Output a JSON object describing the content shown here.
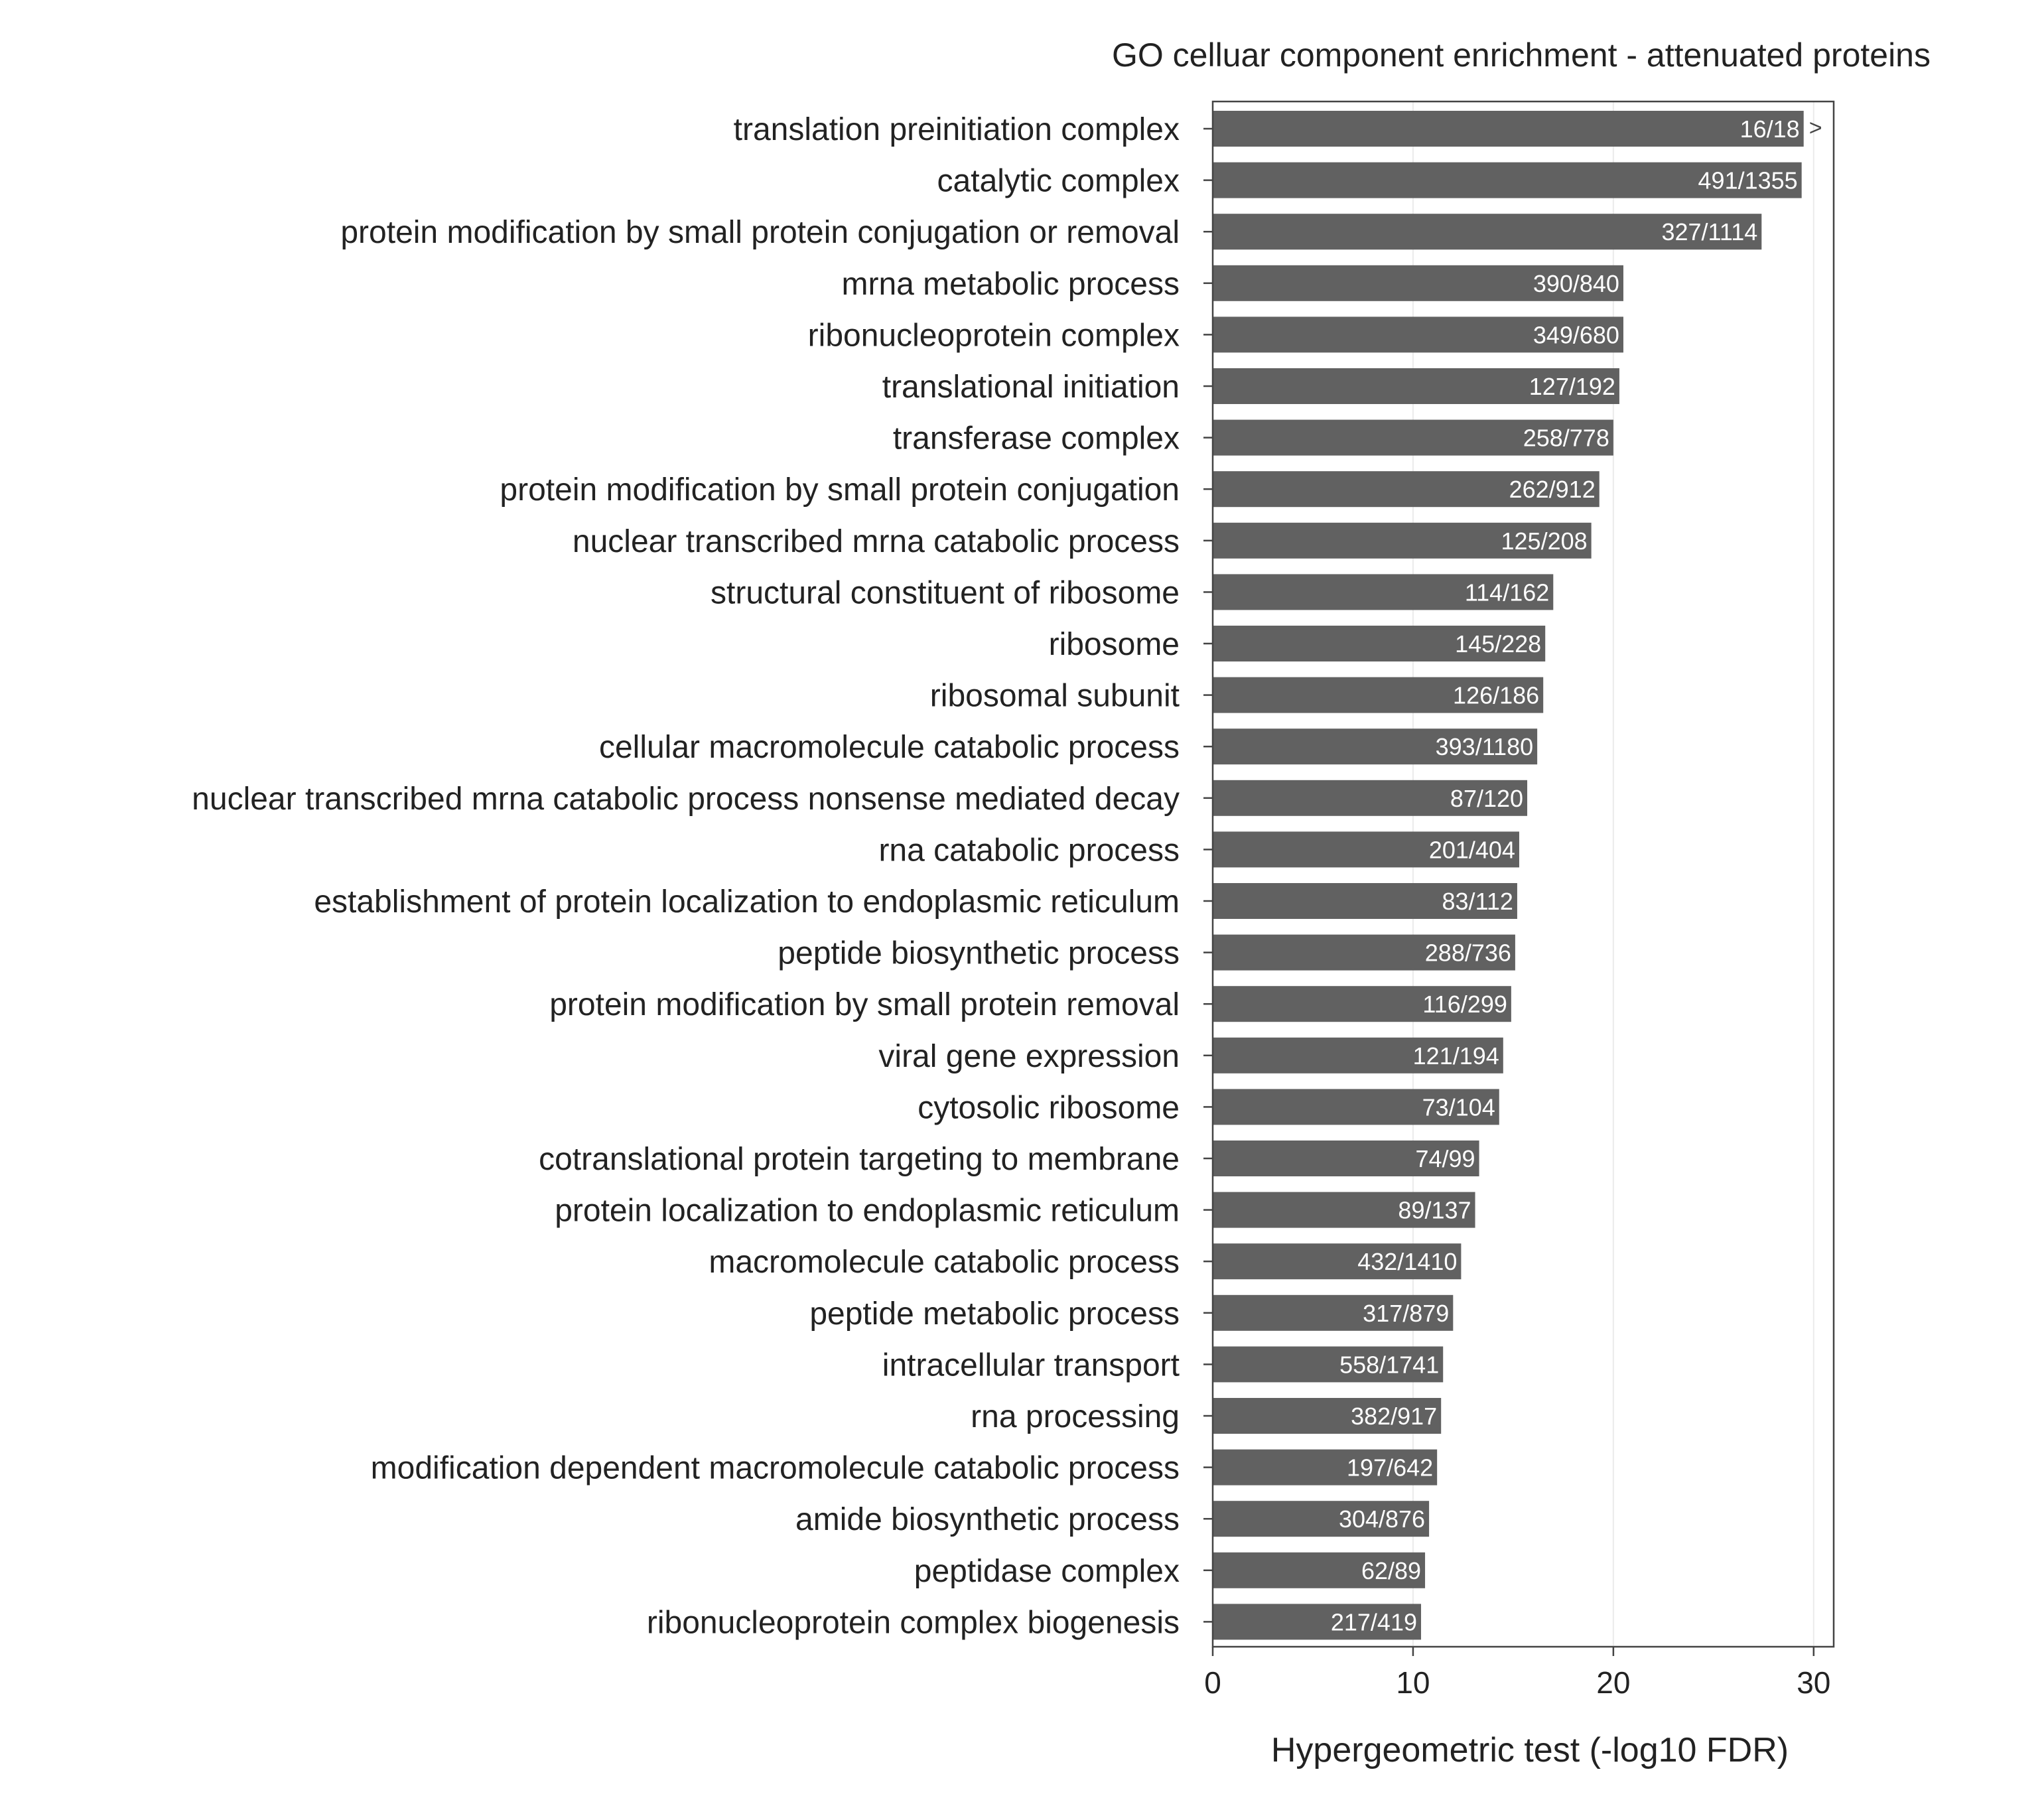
{
  "chart_data": {
    "type": "bar",
    "orientation": "horizontal",
    "title": "GO celluar component enrichment - attenuated proteins",
    "xlabel": "Hypergeometric test (-log10 FDR)",
    "ylabel": "",
    "xlim": [
      0,
      31
    ],
    "xticks": [
      0,
      10,
      20,
      30
    ],
    "grid": "vertical-major",
    "bar_color": "#616161",
    "categories": [
      "translation preinitiation complex",
      "catalytic complex",
      "protein modification by small protein conjugation or removal",
      "mrna metabolic process",
      "ribonucleoprotein complex",
      "translational initiation",
      "transferase complex",
      "protein modification by small protein conjugation",
      "nuclear transcribed mrna catabolic process",
      "structural constituent of ribosome",
      "ribosome",
      "ribosomal subunit",
      "cellular macromolecule catabolic process",
      "nuclear transcribed mrna catabolic process nonsense mediated decay",
      "rna catabolic process",
      "establishment of protein localization to endoplasmic reticulum",
      "peptide biosynthetic process",
      "protein modification by small protein removal",
      "viral gene expression",
      "cytosolic ribosome",
      "cotranslational protein targeting to membrane",
      "protein localization to endoplasmic reticulum",
      "macromolecule catabolic process",
      "peptide metabolic process",
      "intracellular transport",
      "rna processing",
      "modification dependent macromolecule catabolic process",
      "amide biosynthetic process",
      "peptidase complex",
      "ribonucleoprotein complex biogenesis"
    ],
    "values": [
      29.5,
      29.4,
      27.4,
      20.5,
      20.5,
      20.3,
      20.0,
      19.3,
      18.9,
      17.0,
      16.6,
      16.5,
      16.2,
      15.7,
      15.3,
      15.2,
      15.1,
      14.9,
      14.5,
      14.3,
      13.3,
      13.1,
      12.4,
      12.0,
      11.5,
      11.4,
      11.2,
      10.8,
      10.6,
      10.4
    ],
    "bar_labels": [
      "16/18",
      "491/1355",
      "327/1114",
      "390/840",
      "349/680",
      "127/192",
      "258/778",
      "262/912",
      "125/208",
      "114/162",
      "145/228",
      "126/186",
      "393/1180",
      "87/120",
      "201/404",
      "83/112",
      "288/736",
      "116/299",
      "121/194",
      "73/104",
      "74/99",
      "89/137",
      "432/1410",
      "317/879",
      "558/1741",
      "382/917",
      "197/642",
      "304/876",
      "62/89",
      "217/419"
    ],
    "overflow_marker": ">",
    "overflow_index": 0
  }
}
